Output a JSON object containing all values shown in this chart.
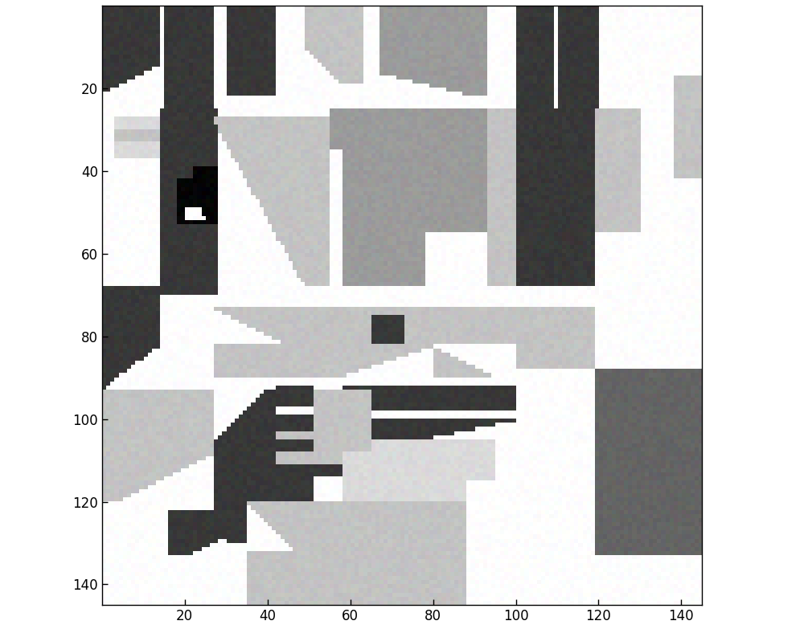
{
  "xlim": [
    0,
    145
  ],
  "ylim": [
    0,
    145
  ],
  "xticks": [
    20,
    40,
    60,
    80,
    100,
    120,
    140
  ],
  "yticks": [
    20,
    40,
    60,
    80,
    100,
    120,
    140
  ],
  "colors": {
    "0": [
      255,
      255,
      255
    ],
    "1": [
      56,
      56,
      56
    ],
    "2": [
      100,
      100,
      100
    ],
    "3": [
      155,
      155,
      155
    ],
    "4": [
      195,
      195,
      195
    ],
    "5": [
      218,
      218,
      218
    ],
    "6": [
      5,
      5,
      5
    ],
    "7": [
      235,
      235,
      235
    ]
  },
  "grid_size": [
    145,
    145
  ]
}
